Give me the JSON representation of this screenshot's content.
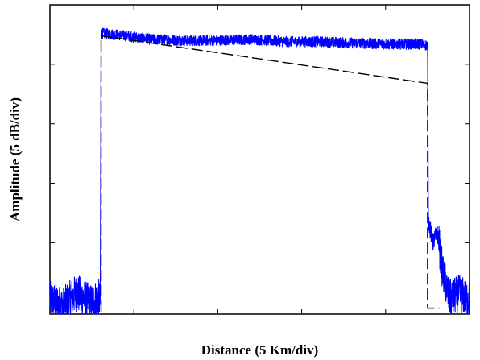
{
  "chart_data": {
    "type": "line",
    "title": "",
    "xlabel": "Distance (5 Km/div)",
    "ylabel": "Amplitude (5 dB/div)",
    "xlim": [
      0,
      25
    ],
    "ylim": [
      -26,
      0
    ],
    "xticks": [
      5,
      10,
      15,
      20
    ],
    "yticks": [
      -5,
      -10,
      -15,
      -20,
      -25
    ],
    "grid": false,
    "legend": "none",
    "series": [
      {
        "style": "solid",
        "color": "#0000ff",
        "points": [
          [
            0,
            -24.8
          ],
          [
            0.8,
            -25.3
          ],
          [
            1.6,
            -24.2
          ],
          [
            2.4,
            -25.1
          ],
          [
            2.9,
            -24.6
          ],
          [
            3.0,
            -25.0
          ],
          [
            3.05,
            -2.4
          ],
          [
            4.0,
            -2.5
          ],
          [
            6.0,
            -2.9
          ],
          [
            8.0,
            -3.0
          ],
          [
            10.0,
            -3.0
          ],
          [
            12.0,
            -2.9
          ],
          [
            14.0,
            -3.1
          ],
          [
            16.0,
            -3.1
          ],
          [
            18.0,
            -3.2
          ],
          [
            20.0,
            -3.3
          ],
          [
            22.0,
            -3.3
          ],
          [
            22.5,
            -3.4
          ],
          [
            22.55,
            -18.0
          ],
          [
            22.8,
            -20.0
          ],
          [
            23.1,
            -19.2
          ],
          [
            23.4,
            -22.5
          ],
          [
            23.8,
            -24.7
          ],
          [
            24.4,
            -24.3
          ],
          [
            25.0,
            -24.8
          ]
        ]
      },
      {
        "style": "dashed",
        "color": "#000000",
        "points": [
          [
            3.05,
            -25.8
          ],
          [
            3.05,
            -2.6
          ],
          [
            22.5,
            -6.6
          ],
          [
            22.5,
            -25.5
          ],
          [
            23.2,
            -25.5
          ]
        ]
      }
    ]
  }
}
